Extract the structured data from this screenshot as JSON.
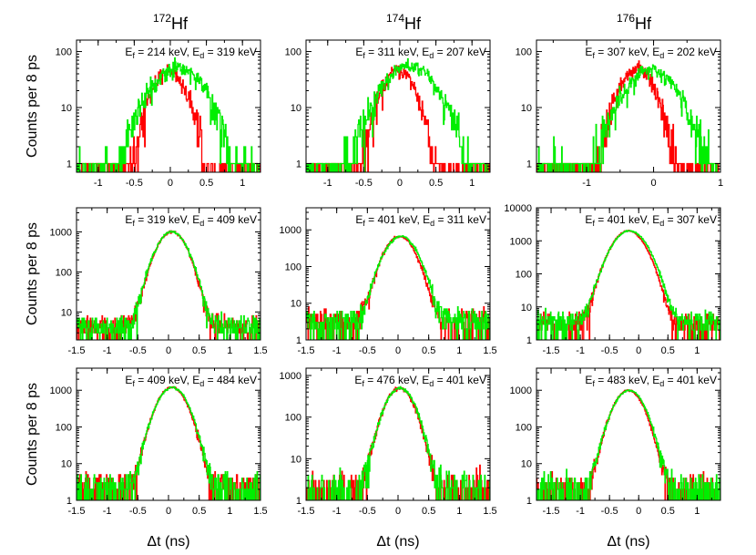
{
  "figure": {
    "column_titles": [
      {
        "mass": "172",
        "element": "Hf"
      },
      {
        "mass": "174",
        "element": "Hf"
      },
      {
        "mass": "176",
        "element": "Hf"
      }
    ],
    "row_ylabel": "Counts per 8 ps",
    "xlabel": "Δt (ns)",
    "series_colors": {
      "series_1": "#ff0000",
      "series_2": "#00ee00"
    }
  },
  "chart_data": [
    {
      "type": "line",
      "row": 0,
      "col": 0,
      "yscale": "log",
      "xlim": [
        -1.3,
        1.25
      ],
      "ylim": [
        0.7,
        160
      ],
      "xticks": [
        -1,
        -0.5,
        0,
        0.5,
        1
      ],
      "yticks": [
        1,
        10,
        100
      ],
      "annotation": {
        "ef": "214 keV",
        "ed": "319 keV"
      },
      "series": [
        {
          "name": "series_1",
          "color": "#ff0000",
          "center": -0.03,
          "sigma": 0.18,
          "peak": 45,
          "bg": 0.45
        },
        {
          "name": "series_2",
          "color": "#00ee00",
          "center": 0.1,
          "sigma": 0.28,
          "peak": 50,
          "bg": 0.75
        }
      ]
    },
    {
      "type": "line",
      "row": 0,
      "col": 1,
      "yscale": "log",
      "xlim": [
        -1.3,
        1.25
      ],
      "ylim": [
        0.7,
        160
      ],
      "xticks": [
        -1,
        -0.5,
        0,
        0.5,
        1
      ],
      "yticks": [
        1,
        10,
        100
      ],
      "annotation": {
        "ef": "311 keV",
        "ed": "207 keV"
      },
      "series": [
        {
          "name": "series_1",
          "color": "#ff0000",
          "center": -0.02,
          "sigma": 0.18,
          "peak": 45,
          "bg": 0.45
        },
        {
          "name": "series_2",
          "color": "#00ee00",
          "center": 0.12,
          "sigma": 0.28,
          "peak": 55,
          "bg": 0.75
        }
      ]
    },
    {
      "type": "line",
      "row": 0,
      "col": 2,
      "yscale": "log",
      "xlim": [
        -1.75,
        1.0
      ],
      "ylim": [
        0.7,
        160
      ],
      "xticks": [
        -1,
        0,
        1
      ],
      "yticks": [
        1,
        10,
        100
      ],
      "annotation": {
        "ef": "307 keV",
        "ed": "202 keV"
      },
      "series": [
        {
          "name": "series_1",
          "color": "#ff0000",
          "center": -0.25,
          "sigma": 0.2,
          "peak": 50,
          "bg": 0.45
        },
        {
          "name": "series_2",
          "color": "#00ee00",
          "center": -0.05,
          "sigma": 0.3,
          "peak": 45,
          "bg": 0.75
        }
      ]
    },
    {
      "type": "line",
      "row": 1,
      "col": 0,
      "yscale": "log",
      "xlim": [
        -1.5,
        1.5
      ],
      "ylim": [
        2,
        4000
      ],
      "xticks": [
        -1.5,
        -1,
        -0.5,
        0,
        0.5,
        1,
        1.5
      ],
      "yticks": [
        10,
        100,
        1000
      ],
      "annotation": {
        "ef": "319 keV",
        "ed": "409 keV"
      },
      "series": [
        {
          "name": "series_1",
          "color": "#ff0000",
          "center": 0.05,
          "sigma": 0.18,
          "peak": 1000,
          "bg": 4
        },
        {
          "name": "series_2",
          "color": "#00ee00",
          "center": 0.05,
          "sigma": 0.185,
          "peak": 1000,
          "bg": 4
        }
      ]
    },
    {
      "type": "line",
      "row": 1,
      "col": 1,
      "yscale": "log",
      "xlim": [
        -1.5,
        1.5
      ],
      "ylim": [
        1,
        4000
      ],
      "xticks": [
        -1.5,
        -1,
        -0.5,
        0,
        0.5,
        1,
        1.5
      ],
      "yticks": [
        1,
        10,
        100,
        1000
      ],
      "annotation": {
        "ef": "401 keV",
        "ed": "311 keV"
      },
      "series": [
        {
          "name": "series_1",
          "color": "#ff0000",
          "center": 0.02,
          "sigma": 0.18,
          "peak": 650,
          "bg": 3
        },
        {
          "name": "series_2",
          "color": "#00ee00",
          "center": 0.04,
          "sigma": 0.19,
          "peak": 650,
          "bg": 3
        }
      ]
    },
    {
      "type": "line",
      "row": 1,
      "col": 2,
      "yscale": "log",
      "xlim": [
        -1.75,
        1.4
      ],
      "ylim": [
        1,
        10000
      ],
      "xticks": [
        -1.5,
        -1,
        -0.5,
        0,
        0.5,
        1
      ],
      "yticks": [
        1,
        10,
        100,
        1000,
        10000
      ],
      "annotation": {
        "ef": "401 keV",
        "ed": "307 keV"
      },
      "series": [
        {
          "name": "series_1",
          "color": "#ff0000",
          "center": -0.18,
          "sigma": 0.2,
          "peak": 2000,
          "bg": 3
        },
        {
          "name": "series_2",
          "color": "#00ee00",
          "center": -0.16,
          "sigma": 0.21,
          "peak": 2000,
          "bg": 3.5
        }
      ]
    },
    {
      "type": "line",
      "row": 2,
      "col": 0,
      "yscale": "log",
      "xlim": [
        -1.5,
        1.5
      ],
      "ylim": [
        1,
        4000
      ],
      "xticks": [
        -1.5,
        -1,
        -0.5,
        0,
        0.5,
        1,
        1.5
      ],
      "yticks": [
        1,
        10,
        100,
        1000
      ],
      "annotation": {
        "ef": "409 keV",
        "ed": "484 keV"
      },
      "series": [
        {
          "name": "series_1",
          "color": "#ff0000",
          "center": 0.05,
          "sigma": 0.17,
          "peak": 1200,
          "bg": 2.5
        },
        {
          "name": "series_2",
          "color": "#00ee00",
          "center": 0.06,
          "sigma": 0.175,
          "peak": 1200,
          "bg": 2.5
        }
      ]
    },
    {
      "type": "line",
      "row": 2,
      "col": 1,
      "yscale": "log",
      "xlim": [
        -1.5,
        1.5
      ],
      "ylim": [
        1,
        1500
      ],
      "xticks": [
        -1.5,
        -1,
        -0.5,
        0,
        0.5,
        1,
        1.5
      ],
      "yticks": [
        1,
        10,
        100,
        1000
      ],
      "annotation": {
        "ef": "476 keV",
        "ed": "401 keV"
      },
      "series": [
        {
          "name": "series_1",
          "color": "#ff0000",
          "center": 0.02,
          "sigma": 0.17,
          "peak": 500,
          "bg": 2
        },
        {
          "name": "series_2",
          "color": "#00ee00",
          "center": 0.03,
          "sigma": 0.175,
          "peak": 500,
          "bg": 2
        }
      ]
    },
    {
      "type": "line",
      "row": 2,
      "col": 2,
      "yscale": "log",
      "xlim": [
        -1.75,
        1.4
      ],
      "ylim": [
        1,
        4000
      ],
      "xticks": [
        -1.5,
        -1,
        -0.5,
        0,
        0.5,
        1
      ],
      "yticks": [
        1,
        10,
        100,
        1000
      ],
      "annotation": {
        "ef": "483 keV",
        "ed": "401 keV"
      },
      "series": [
        {
          "name": "series_1",
          "color": "#ff0000",
          "center": -0.18,
          "sigma": 0.18,
          "peak": 1000,
          "bg": 2
        },
        {
          "name": "series_2",
          "color": "#00ee00",
          "center": -0.17,
          "sigma": 0.185,
          "peak": 1000,
          "bg": 2
        }
      ]
    }
  ]
}
